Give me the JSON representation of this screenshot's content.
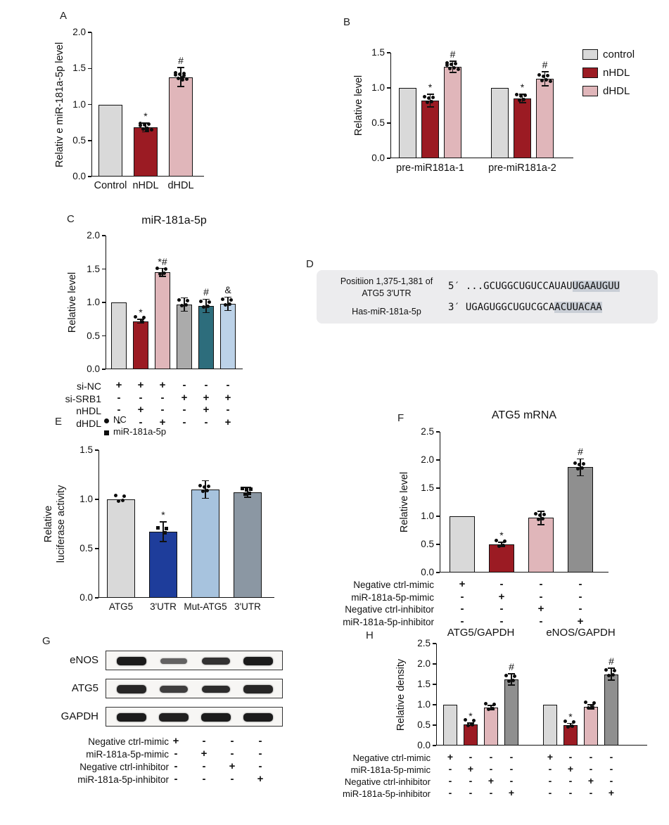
{
  "figure_labels": {
    "A": "A",
    "B": "B",
    "C": "C",
    "D": "D",
    "E": "E",
    "F": "F",
    "G": "G",
    "H": "H"
  },
  "colors": {
    "control_gray": "#d9d9d9",
    "nhdl_red": "#9b1b23",
    "dhdl_pink": "#e0b6ba",
    "gray_bar": "#ababab",
    "teal_bar": "#2d6d7c",
    "lightblue_bar": "#bcd2e8",
    "darkblue_bar": "#1e3d9b",
    "slate_bar": "#8b97a3",
    "darkgray_bar": "#8f8f8f",
    "sequence_box": "#ececee",
    "sequence_highlight": "#c9ced6"
  },
  "chart_data": [
    {
      "id": "A",
      "type": "bar",
      "title": "",
      "ylabel": "Relativ e miR-181a-5p level",
      "ylim": [
        0,
        2.0
      ],
      "yticks": [
        0,
        0.5,
        1.0,
        1.5,
        2.0
      ],
      "categories": [
        "Control",
        "nHDL",
        "dHDL"
      ],
      "bars": [
        {
          "value": 1.0,
          "error": 0,
          "color": "#d9d9d9",
          "sig": "",
          "dots": 0
        },
        {
          "value": 0.68,
          "error": 0.06,
          "color": "#9b1b23",
          "sig": "*",
          "dots": 8
        },
        {
          "value": 1.38,
          "error": 0.13,
          "color": "#e0b6ba",
          "sig": "#",
          "dots": 9
        }
      ]
    },
    {
      "id": "B",
      "type": "bar",
      "ylabel": "Relative level",
      "ylim": [
        0,
        1.5
      ],
      "yticks": [
        0,
        0.5,
        1.0,
        1.5
      ],
      "group_labels": [
        "pre-miR181a-1",
        "pre-miR181a-2"
      ],
      "legend": [
        {
          "label": "control",
          "color": "#d9d9d9"
        },
        {
          "label": "nHDL",
          "color": "#9b1b23"
        },
        {
          "label": "dHDL",
          "color": "#e0b6ba"
        }
      ],
      "bars": [
        {
          "group": 0,
          "value": 1.0,
          "error": 0,
          "color": "#d9d9d9",
          "sig": "",
          "dots": 0
        },
        {
          "group": 0,
          "value": 0.82,
          "error": 0.09,
          "color": "#9b1b23",
          "sig": "*",
          "dots": 5
        },
        {
          "group": 0,
          "value": 1.3,
          "error": 0.08,
          "color": "#e0b6ba",
          "sig": "#",
          "dots": 7
        },
        {
          "group": 1,
          "value": 1.0,
          "error": 0,
          "color": "#d9d9d9",
          "sig": "",
          "dots": 0
        },
        {
          "group": 1,
          "value": 0.85,
          "error": 0.06,
          "color": "#9b1b23",
          "sig": "*",
          "dots": 5
        },
        {
          "group": 1,
          "value": 1.13,
          "error": 0.1,
          "color": "#e0b6ba",
          "sig": "#",
          "dots": 6
        }
      ]
    },
    {
      "id": "C",
      "type": "bar",
      "title": "miR-181a-5p",
      "ylabel": "Relative level",
      "ylim": [
        0,
        2.0
      ],
      "yticks": [
        0,
        0.5,
        1.0,
        1.5,
        2.0
      ],
      "bars": [
        {
          "value": 1.0,
          "error": 0,
          "color": "#d9d9d9",
          "sig": "",
          "dots": 0
        },
        {
          "value": 0.72,
          "error": 0.03,
          "color": "#9b1b23",
          "sig": "*",
          "dots": 3
        },
        {
          "value": 1.45,
          "error": 0.06,
          "color": "#e0b6ba",
          "sig": "*#",
          "dots": 4
        },
        {
          "value": 0.97,
          "error": 0.1,
          "color": "#ababab",
          "sig": "",
          "dots": 4
        },
        {
          "value": 0.95,
          "error": 0.1,
          "color": "#2d6d7c",
          "sig": "#",
          "dots": 4
        },
        {
          "value": 0.98,
          "error": 0.1,
          "color": "#bcd2e8",
          "sig": "&",
          "dots": 4
        }
      ],
      "matrix": [
        {
          "label": "si-NC",
          "signs": [
            "+",
            "+",
            "+",
            "-",
            "-",
            "-"
          ]
        },
        {
          "label": "si-SRB1",
          "signs": [
            "-",
            "-",
            "-",
            "+",
            "+",
            "+"
          ]
        },
        {
          "label": "nHDL",
          "signs": [
            "-",
            "+",
            "-",
            "-",
            "+",
            "-"
          ]
        },
        {
          "label": "dHDL",
          "signs": [
            "-",
            "-",
            "+",
            "-",
            "-",
            "+"
          ]
        }
      ]
    },
    {
      "id": "D",
      "type": "sequence",
      "left_lines": [
        "Positiion 1,375-1,381 of",
        "ATG5 3′UTR",
        "Has-miR-181a-5p"
      ],
      "rows": [
        {
          "prime": "5′",
          "pre": "...GCUGGCUGUCCAUAU",
          "hl": "UGAAUGUU"
        },
        {
          "prime": "3′",
          "pre": "UGAGUGGCUGUCGCA",
          "hl": "ACUUACAA"
        }
      ]
    },
    {
      "id": "E",
      "type": "bar",
      "ylabel": "Relative\nluciferase activity",
      "ylim": [
        0,
        1.5
      ],
      "yticks": [
        0,
        0.5,
        1.0,
        1.5
      ],
      "legend_markers": [
        {
          "marker": "circle",
          "label": "NC"
        },
        {
          "marker": "square",
          "label": "miR-181a-5p"
        }
      ],
      "categories": [
        "ATG5",
        "3'UTR",
        "Mut-ATG5",
        "3'UTR"
      ],
      "bars": [
        {
          "value": 1.0,
          "error": 0,
          "color": "#d9d9d9",
          "sig": "",
          "dots": 4,
          "marker": "circle"
        },
        {
          "value": 0.67,
          "error": 0.1,
          "color": "#1e3d9b",
          "sig": "*",
          "dots": 3,
          "marker": "square"
        },
        {
          "value": 1.1,
          "error": 0.09,
          "color": "#a7c3de",
          "sig": "",
          "dots": 5,
          "marker": "circle"
        },
        {
          "value": 1.07,
          "error": 0.05,
          "color": "#8b97a3",
          "sig": "",
          "dots": 5,
          "marker": "square"
        }
      ]
    },
    {
      "id": "F",
      "type": "bar",
      "title": "ATG5  mRNA",
      "ylabel": "Relative level",
      "ylim": [
        0,
        2.5
      ],
      "yticks": [
        0,
        0.5,
        1.0,
        1.5,
        2.0,
        2.5
      ],
      "bars": [
        {
          "value": 1.0,
          "error": 0,
          "color": "#d9d9d9",
          "sig": "",
          "dots": 0
        },
        {
          "value": 0.5,
          "error": 0.04,
          "color": "#9b1b23",
          "sig": "*",
          "dots": 4
        },
        {
          "value": 0.97,
          "error": 0.12,
          "color": "#e0b6ba",
          "sig": "",
          "dots": 5
        },
        {
          "value": 1.87,
          "error": 0.15,
          "color": "#8f8f8f",
          "sig": "#",
          "dots": 5
        }
      ],
      "matrix": [
        {
          "label": "Negative ctrl-mimic",
          "signs": [
            "+",
            "-",
            "-",
            "-"
          ]
        },
        {
          "label": "miR-181a-5p-mimic",
          "signs": [
            "-",
            "+",
            "-",
            "-"
          ]
        },
        {
          "label": "Negative ctrl-inhibitor",
          "signs": [
            "-",
            "-",
            "+",
            "-"
          ]
        },
        {
          "label": "miR-181a-5p-inhibitor",
          "signs": [
            "-",
            "-",
            "-",
            "+"
          ]
        }
      ]
    },
    {
      "id": "G",
      "type": "blot",
      "rows": [
        {
          "label": "eNOS",
          "bands": [
            1.0,
            0.4,
            0.8,
            1.0
          ]
        },
        {
          "label": "ATG5",
          "bands": [
            0.9,
            0.7,
            0.85,
            0.9
          ]
        },
        {
          "label": "GAPDH",
          "bands": [
            1.0,
            0.95,
            1.0,
            1.0
          ]
        }
      ],
      "matrix": [
        {
          "label": "Negative ctrl-mimic",
          "signs": [
            "+",
            "-",
            "-",
            "-"
          ]
        },
        {
          "label": "miR-181a-5p-mimic",
          "signs": [
            "-",
            "+",
            "-",
            "-"
          ]
        },
        {
          "label": "Negative ctrl-inhibitor",
          "signs": [
            "-",
            "-",
            "+",
            "-"
          ]
        },
        {
          "label": "miR-181a-5p-inhibitor",
          "signs": [
            "-",
            "-",
            "-",
            "+"
          ]
        }
      ]
    },
    {
      "id": "H",
      "type": "bar",
      "ylabel": "Relative density",
      "ylim": [
        0,
        2.5
      ],
      "yticks": [
        0,
        0.5,
        1.0,
        1.5,
        2.0,
        2.5
      ],
      "group_titles": [
        "ATG5/GAPDH",
        "eNOS/GAPDH"
      ],
      "bars": [
        {
          "group": 0,
          "value": 1.0,
          "error": 0,
          "color": "#d9d9d9",
          "sig": "",
          "dots": 0
        },
        {
          "group": 0,
          "value": 0.52,
          "error": 0.03,
          "color": "#9b1b23",
          "sig": "*",
          "dots": 4
        },
        {
          "group": 0,
          "value": 0.93,
          "error": 0.05,
          "color": "#e0b6ba",
          "sig": "",
          "dots": 4
        },
        {
          "group": 0,
          "value": 1.62,
          "error": 0.14,
          "color": "#8f8f8f",
          "sig": "#",
          "dots": 4
        },
        {
          "group": 1,
          "value": 1.0,
          "error": 0,
          "color": "#d9d9d9",
          "sig": "",
          "dots": 0
        },
        {
          "group": 1,
          "value": 0.5,
          "error": 0.04,
          "color": "#9b1b23",
          "sig": "*",
          "dots": 4
        },
        {
          "group": 1,
          "value": 0.95,
          "error": 0.05,
          "color": "#e0b6ba",
          "sig": "",
          "dots": 4
        },
        {
          "group": 1,
          "value": 1.75,
          "error": 0.15,
          "color": "#8f8f8f",
          "sig": "#",
          "dots": 4
        }
      ],
      "matrix": [
        {
          "label": "Negative ctrl-mimic",
          "signs": [
            "+",
            "-",
            "-",
            "-",
            "+",
            "-",
            "-",
            "-"
          ]
        },
        {
          "label": "miR-181a-5p-mimic",
          "signs": [
            "-",
            "+",
            "-",
            "-",
            "-",
            "+",
            "-",
            "-"
          ]
        },
        {
          "label": "Negative ctrl-inhibitor",
          "signs": [
            "-",
            "-",
            "+",
            "-",
            "-",
            "-",
            "+",
            "-"
          ]
        },
        {
          "label": "miR-181a-5p-inhibitor",
          "signs": [
            "-",
            "-",
            "-",
            "+",
            "-",
            "-",
            "-",
            "+"
          ]
        }
      ]
    }
  ]
}
